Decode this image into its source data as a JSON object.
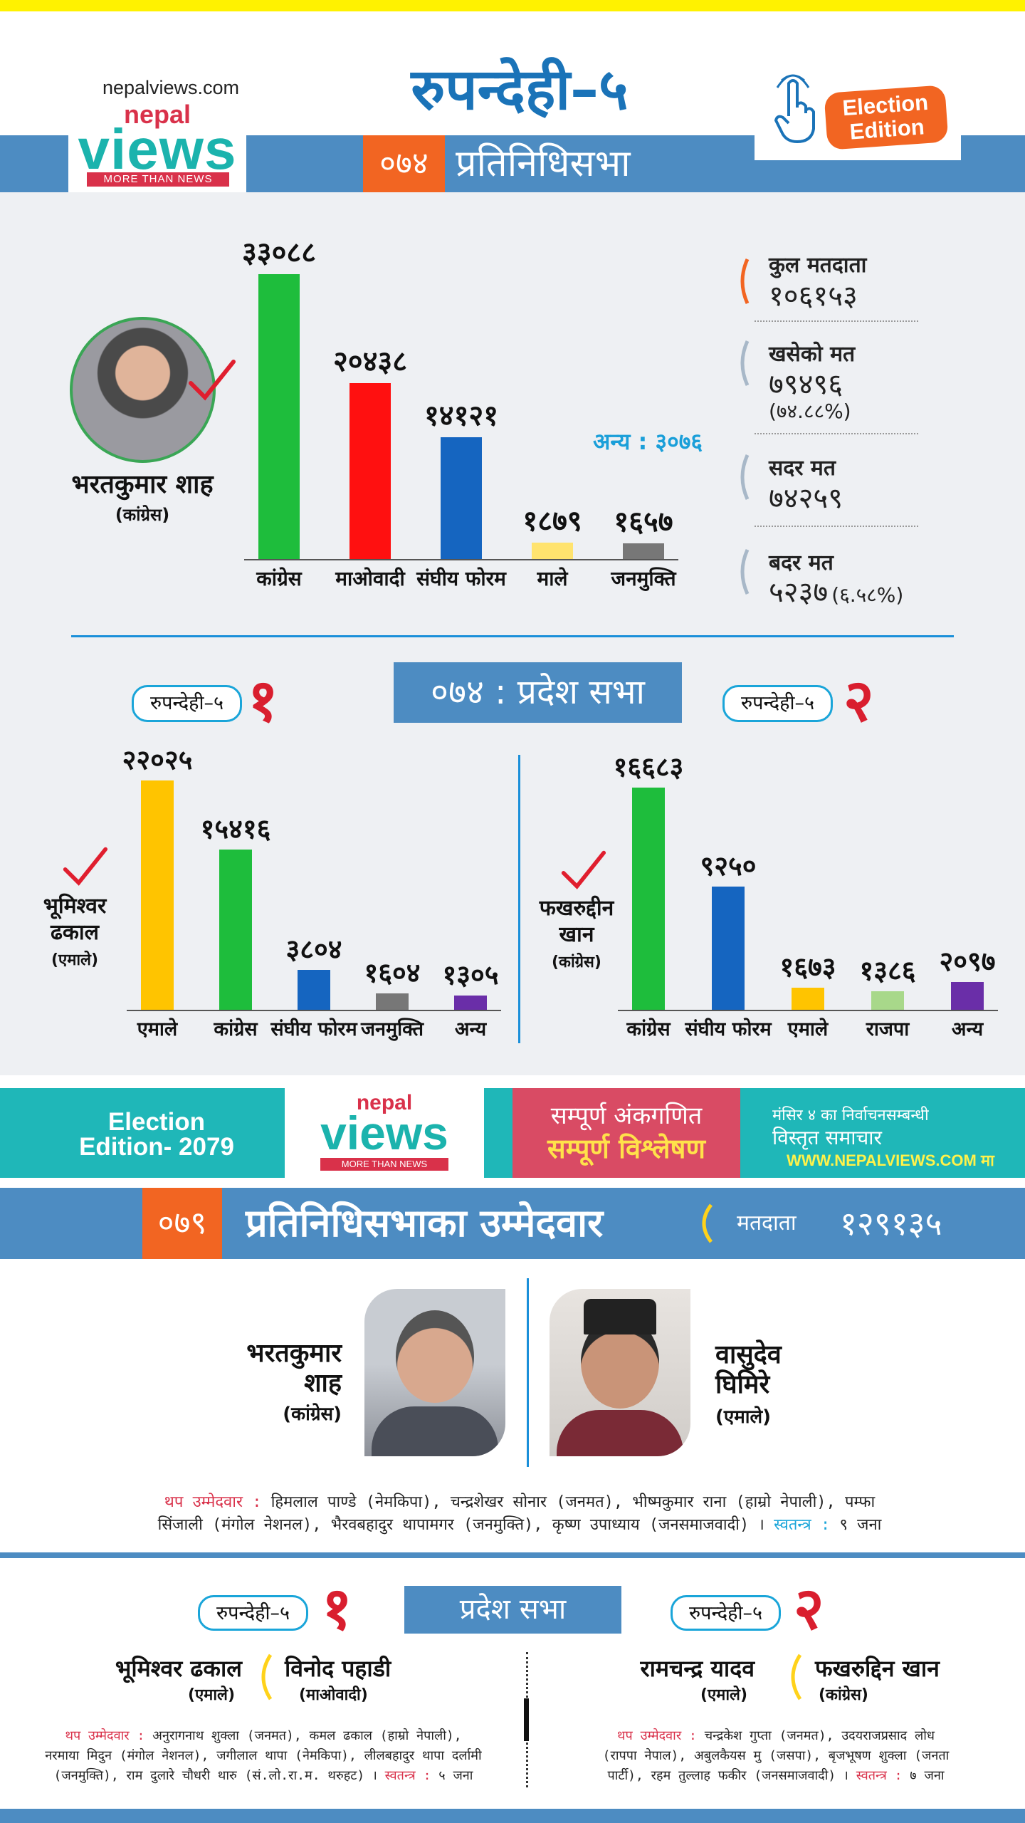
{
  "header": {
    "site_url": "nepalviews.com",
    "logo_nepal": "nepal",
    "logo_views": "views",
    "logo_tagline": "MORE THAN NEWS",
    "title": "रुपन्देही–५",
    "year": "०७४",
    "band_title": "प्रतिनिधिसभा",
    "election_badge_line1": "Election",
    "election_badge_line2": "Edition"
  },
  "colors": {
    "congress": "#1ebd3c",
    "maoist": "#ff1010",
    "forum": "#1565c0",
    "male": "#ffe36e",
    "janamukti": "#777777",
    "emale": "#ffc400",
    "anya": "#6a2ea8",
    "rajpa": "#a8d88a",
    "accent_blue": "#4d8cc2",
    "accent_orange": "#f26522"
  },
  "hor_2074": {
    "winner_name": "भरतकुमार शाह",
    "winner_party": "(कांग्रेस)",
    "anya_note": "अन्य : ३०७६"
  },
  "stats": {
    "total_voters_label": "कुल मतदाता",
    "total_voters": "१०६१५३",
    "cast_label": "खसेको मत",
    "cast": "७९४९६",
    "cast_pct": "(७४.८८%)",
    "valid_label": "सदर मत",
    "valid": "७४२५९",
    "invalid_label": "बदर मत",
    "invalid": "५२३७",
    "invalid_pct": "(६.५८%)"
  },
  "pradesh_2074": {
    "title": "०७४ : प्रदेश सभा",
    "pill": "रुपन्देही–५",
    "num1": "१",
    "num2": "२",
    "winner1_name_line1": "भूमिश्वर",
    "winner1_name_line2": "ढकाल",
    "winner1_party": "(एमाले)",
    "winner2_name_line1": "फखरुद्दीन",
    "winner2_name_line2": "खान",
    "winner2_party": "(कांग्रेस)"
  },
  "chart_data": [
    {
      "type": "bar",
      "categories": [
        "कांग्रेस",
        "माओवादी",
        "संघीय फोरम",
        "माले",
        "जनमुक्ति"
      ],
      "values": [
        33088,
        20438,
        14121,
        1879,
        1657
      ],
      "value_labels": [
        "३३०८८",
        "२०४३८",
        "१४१२१",
        "१८७९",
        "१६५७"
      ]
    },
    {
      "type": "bar",
      "categories": [
        "एमाले",
        "कांग्रेस",
        "संघीय फोरम",
        "जनमुक्ति",
        "अन्य"
      ],
      "values": [
        22025,
        15416,
        3804,
        1604,
        1305
      ],
      "value_labels": [
        "२२०२५",
        "१५४१६",
        "३८०४",
        "१६०४",
        "१३०५"
      ]
    },
    {
      "type": "bar",
      "categories": [
        "कांग्रेस",
        "संघीय फोरम",
        "एमाले",
        "राजपा",
        "अन्य"
      ],
      "values": [
        16683,
        9250,
        1673,
        1386,
        2097
      ],
      "value_labels": [
        "१६६८३",
        "९२५०",
        "१६७३",
        "१३८६",
        "२०९७"
      ]
    }
  ],
  "banner": {
    "ee_line1": "Election",
    "ee_line2": "Edition- 2079",
    "logo_nepal": "nepal",
    "logo_views": "views",
    "logo_tagline": "MORE THAN NEWS",
    "red_line1": "सम्पूर्ण अंकगणित",
    "red_line2": "सम्पूर्ण विश्लेषण",
    "right_line1": "मंसिर ४ का निर्वाचनसम्बन्धी",
    "right_line2": "विस्तृत समाचार",
    "right_url": "WWW.NEPALVIEWS.COM मा"
  },
  "hor_2079": {
    "year": "०७९",
    "title": "प्रतिनिधिसभाका उम्मेदवार",
    "voters_label": "मतदाता",
    "voters": "१२९१३५",
    "cand1_line1": "भरतकुमार",
    "cand1_line2": "शाह",
    "cand1_party": "(कांग्रेस)",
    "cand2_line1": "वासुदेव",
    "cand2_line2": "घिमिरे",
    "cand2_party": "(एमाले)",
    "others_label": "थप उम्मेदवार :",
    "others_line1": "हिमलाल पाण्डे (नेमकिपा), चन्द्रशेखर सोनार (जनमत), भीष्मकुमार राना (हाम्रो नेपाली), पम्फा",
    "others_line2": "सिंजाली (मंगोल नेशनल), भैरवबहादुर थापामगर (जनमुक्ति), कृष्ण उपाध्याय (जनसमाजवादी) ।",
    "independent_label": "स्वतन्त्र :",
    "independent": "९ जना"
  },
  "pradesh_2079": {
    "title": "प्रदेश सभा",
    "pill": "रुपन्देही–५",
    "num1": "१",
    "num2": "२",
    "c1a_name": "भूमिश्वर ढकाल",
    "c1a_party": "(एमाले)",
    "c1b_name": "विनोद पहाडी",
    "c1b_party": "(माओवादी)",
    "c2a_name": "रामचन्द्र यादव",
    "c2a_party": "(एमाले)",
    "c2b_name": "फखरुद्दिन खान",
    "c2b_party": "(कांग्रेस)",
    "others_label": "थप उम्मेदवार :",
    "left_others_1": "अनुरागनाथ शुक्ला (जनमत), कमल ढकाल (हाम्रो नेपाली),",
    "left_others_2": "नरमाया मिदुन (मंगोल नेशनल), जगीलाल थापा (नेमकिपा), लीलबहादुर थापा दर्लामी",
    "left_others_3": "(जनमुक्ति), राम दुलारे चौधरी थारु (सं.लो.रा.म. थरुहट) ।",
    "left_independent_label": "स्वतन्त्र :",
    "left_independent": "५ जना",
    "right_others_1": "चन्द्रकेश गुप्ता (जनमत), उदयराजप्रसाद लोध",
    "right_others_2": "(रापपा नेपाल), अबुलकैयस मु (जसपा), बृजभूषण शुक्ला (जनता",
    "right_others_3": "पार्टी), रहम तुल्लाह फकीर (जनसमाजवादी) ।",
    "right_independent_label": "स्वतन्त्र :",
    "right_independent": "७ जना"
  }
}
